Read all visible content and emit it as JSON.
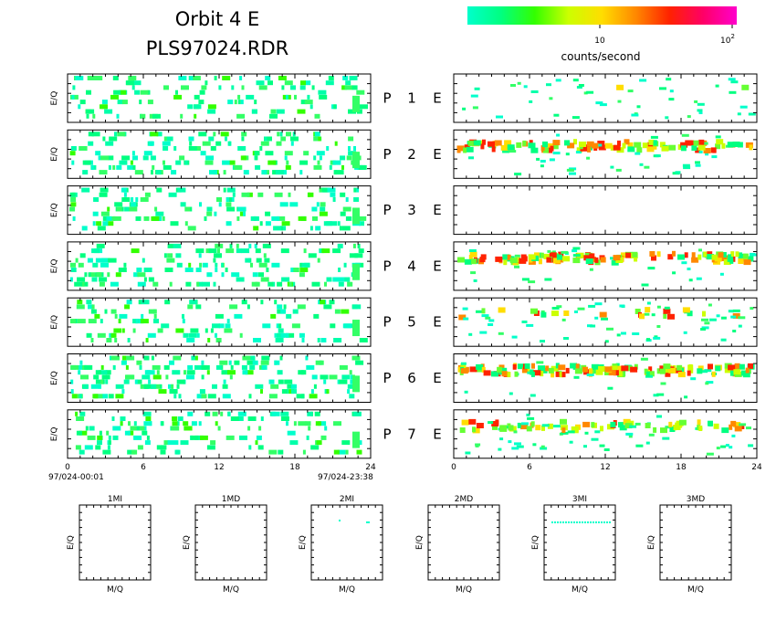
{
  "header": {
    "title": "Orbit 4 E",
    "subtitle": "PLS97024.RDR"
  },
  "colorbar": {
    "label": "counts/second",
    "tick_10": "10",
    "tick_100_base": "10",
    "tick_100_exp": "2",
    "scale": "log",
    "range": [
      3,
      100
    ],
    "colors": [
      "#00ffcc",
      "#00ff80",
      "#33ff00",
      "#ccff00",
      "#ffdd00",
      "#ff8800",
      "#ff2200",
      "#ff0066",
      "#ff00cc"
    ]
  },
  "axis_labels": {
    "y_panel": "E/Q",
    "y_small": "E/Q",
    "x_small": "M/Q"
  },
  "left_time": {
    "start": "97/024-00:01",
    "end": "97/024-23:38"
  },
  "chart_data": {
    "type": "heatmap",
    "x_ticks": [
      "0",
      "6",
      "12",
      "18",
      "24"
    ],
    "x_range": [
      0,
      24
    ],
    "value_units": "counts/second",
    "rows": [
      {
        "label": "P",
        "num": "1",
        "mode": "E"
      },
      {
        "label": "P",
        "num": "2",
        "mode": "E"
      },
      {
        "label": "P",
        "num": "3",
        "mode": "E"
      },
      {
        "label": "P",
        "num": "4",
        "mode": "E"
      },
      {
        "label": "P",
        "num": "5",
        "mode": "E"
      },
      {
        "label": "P",
        "num": "6",
        "mode": "E"
      },
      {
        "label": "P",
        "num": "7",
        "mode": "E"
      }
    ],
    "right_activity": [
      0.05,
      0.7,
      0,
      0.8,
      0.3,
      0.85,
      0.55
    ],
    "small_panels": [
      {
        "title": "1MI",
        "points": "none"
      },
      {
        "title": "1MD",
        "points": "none"
      },
      {
        "title": "2MI",
        "points": "sparse"
      },
      {
        "title": "2MD",
        "points": "none"
      },
      {
        "title": "3MI",
        "points": "line"
      },
      {
        "title": "3MD",
        "points": "none"
      }
    ]
  }
}
